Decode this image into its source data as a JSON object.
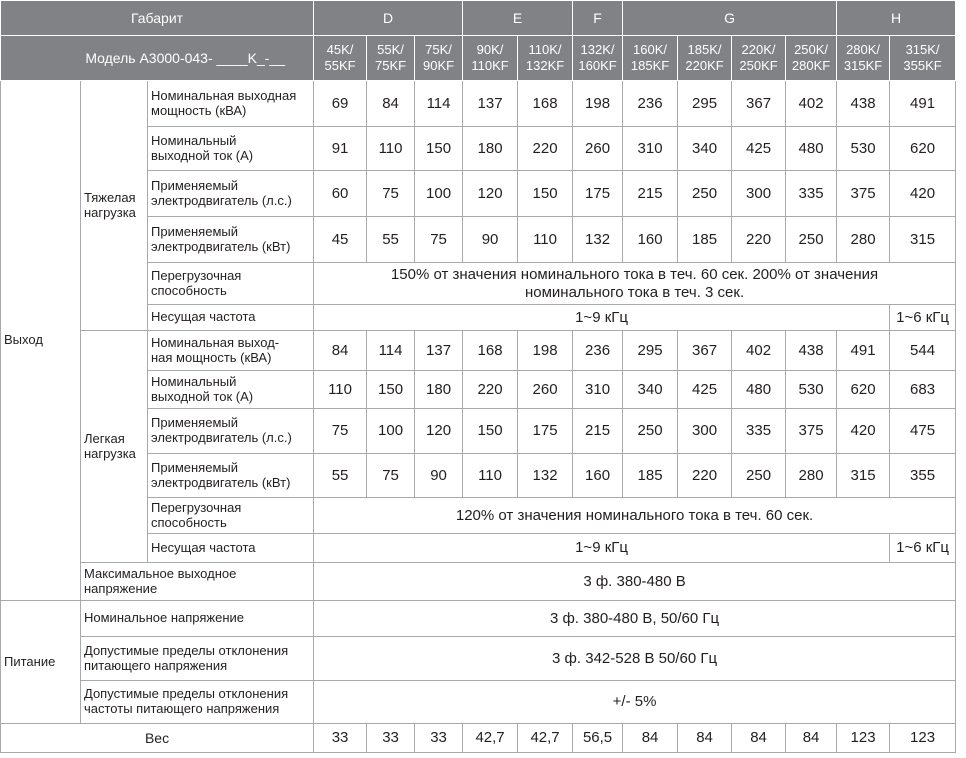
{
  "header": {
    "size_label": "Габарит",
    "model_label": "Модель А3000-043- ____K_-__",
    "sizes": [
      {
        "name": "D",
        "models": [
          "45K/\n55KF",
          "55K/\n75KF",
          "75K/\n90KF"
        ]
      },
      {
        "name": "E",
        "models": [
          "90K/\n110KF",
          "110K/\n132KF"
        ]
      },
      {
        "name": "F",
        "models": [
          "132K/\n160KF"
        ]
      },
      {
        "name": "G",
        "models": [
          "160K/\n185KF",
          "185K/\n220KF",
          "220K/\n250KF",
          "250K/\n280KF"
        ]
      },
      {
        "name": "H",
        "models": [
          "280K/\n315KF",
          "315K/\n355KF"
        ]
      }
    ]
  },
  "sections": [
    {
      "label": "Выход",
      "groups": [
        {
          "label": "Тяжелая\nнагрузка",
          "rows": [
            {
              "param": "Номинальная выходная\nмощность (кВА)",
              "values": [
                "69",
                "84",
                "114",
                "137",
                "168",
                "198",
                "236",
                "295",
                "367",
                "402",
                "438",
                "491"
              ]
            },
            {
              "param": "Номинальный\nвыходной ток (А)",
              "values": [
                "91",
                "110",
                "150",
                "180",
                "220",
                "260",
                "310",
                "340",
                "425",
                "480",
                "530",
                "620"
              ]
            },
            {
              "param": "Применяемый\nэлектродвигатель (л.с.)",
              "values": [
                "60",
                "75",
                "100",
                "120",
                "150",
                "175",
                "215",
                "250",
                "300",
                "335",
                "375",
                "420"
              ]
            },
            {
              "param": "Применяемый\nэлектродвигатель (кВт)",
              "values": [
                "45",
                "55",
                "75",
                "90",
                "110",
                "132",
                "160",
                "185",
                "220",
                "250",
                "280",
                "315"
              ]
            },
            {
              "param": "Перегрузочная\nспособность",
              "values": [
                "150% от значения номинального тока в теч. 60 сек. 200% от значения\nноминального тока в теч. 3 сек."
              ]
            },
            {
              "param": "Несущая частота",
              "values": [
                "1~9 кГц",
                "1~6 кГц"
              ]
            }
          ]
        },
        {
          "label": "Легкая\nнагрузка",
          "rows": [
            {
              "param": "Номинальная выход-\nная мощность (кВА)",
              "values": [
                "84",
                "114",
                "137",
                "168",
                "198",
                "236",
                "295",
                "367",
                "402",
                "438",
                "491",
                "544"
              ]
            },
            {
              "param": "Номинальный\nвыходной ток (А)",
              "values": [
                "110",
                "150",
                "180",
                "220",
                "260",
                "310",
                "340",
                "425",
                "480",
                "530",
                "620",
                "683"
              ]
            },
            {
              "param": "Применяемый\nэлектродвигатель (л.с.)",
              "values": [
                "75",
                "100",
                "120",
                "150",
                "175",
                "215",
                "250",
                "300",
                "335",
                "375",
                "420",
                "475"
              ]
            },
            {
              "param": "Применяемый\nэлектродвигатель (кВт)",
              "values": [
                "55",
                "75",
                "90",
                "110",
                "132",
                "160",
                "185",
                "220",
                "250",
                "280",
                "315",
                "355"
              ]
            },
            {
              "param": "Перегрузочная\nспособность",
              "values": [
                "120% от значения номинального тока в теч. 60 сек."
              ]
            },
            {
              "param": "Несущая частота",
              "values": [
                "1~9 кГц",
                "1~6 кГц"
              ]
            }
          ]
        }
      ],
      "rows": [
        {
          "param": "Максимальное выходное\nнапряжение",
          "values": [
            "3 ф. 380-480 В"
          ]
        }
      ]
    },
    {
      "label": "Питание",
      "groups": [],
      "rows": [
        {
          "param": "Номинальное напряжение",
          "values": [
            "3 ф. 380-480 В, 50/60 Гц"
          ]
        },
        {
          "param": "Допустимые пределы отклонения\nпитающего напряжения",
          "values": [
            "3 ф. 342-528 В 50/60 Гц"
          ]
        },
        {
          "param": "Допустимые пределы отклонения\nчастоты питающего напряжения",
          "values": [
            "+/- 5%"
          ]
        }
      ]
    }
  ],
  "weight": {
    "label": "Вес",
    "values": [
      "33",
      "33",
      "33",
      "42,7",
      "42,7",
      "56,5",
      "84",
      "84",
      "84",
      "84",
      "123",
      "123"
    ]
  }
}
